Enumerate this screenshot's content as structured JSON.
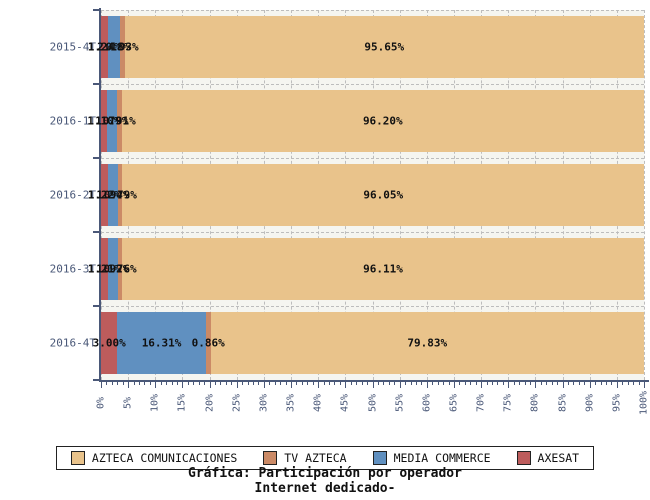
{
  "chart_data": {
    "type": "bar",
    "orientation": "horizontal",
    "stacked": true,
    "title": "Gráfica: Participación por operador",
    "subtitle": "Internet dedicado-",
    "categories": [
      "2015-4T",
      "2016-1T",
      "2016-2T",
      "2016-3T",
      "2016-4T"
    ],
    "series": [
      {
        "name": "AXESAT",
        "color": "#bd5c5c",
        "values": [
          1.24,
          1.1,
          1.22,
          1.21,
          3.0
        ],
        "labels": [
          "1.24%",
          "1.10%",
          "1.22%",
          "1.21%",
          "3.00%"
        ]
      },
      {
        "name": "MEDIA COMMERCE",
        "color": "#6090c0",
        "values": [
          2.18,
          1.79,
          1.94,
          1.92,
          16.31
        ],
        "labels": [
          "2.18%",
          "1.79%",
          "1.94%",
          "1.92%",
          "16.31%"
        ]
      },
      {
        "name": "TV AZTECA",
        "color": "#cb8a66",
        "values": [
          0.93,
          0.91,
          0.79,
          0.76,
          0.86
        ],
        "labels": [
          "0.93%",
          "0.91%",
          "0.79%",
          "0.76%",
          "0.86%"
        ]
      },
      {
        "name": "AZTECA COMUNICACIONES",
        "color": "#e9c38b",
        "values": [
          95.65,
          96.2,
          96.05,
          96.11,
          79.83
        ],
        "labels": [
          "95.65%",
          "96.20%",
          "96.05%",
          "96.11%",
          "79.83%"
        ]
      }
    ],
    "legend": [
      {
        "label": "AZTECA COMUNICACIONES",
        "color": "#e9c38b"
      },
      {
        "label": "TV AZTECA",
        "color": "#cb8a66"
      },
      {
        "label": "MEDIA COMMERCE",
        "color": "#6090c0"
      },
      {
        "label": "AXESAT",
        "color": "#bd5c5c"
      }
    ],
    "xlim": [
      0,
      100
    ],
    "x_ticks": [
      "0%",
      "5%",
      "10%",
      "15%",
      "20%",
      "25%",
      "30%",
      "35%",
      "40%",
      "45%",
      "50%",
      "55%",
      "60%",
      "65%",
      "70%",
      "75%",
      "80%",
      "85%",
      "90%",
      "95%",
      "100%"
    ],
    "grid": "dashed",
    "colors": {
      "axis": "#4a5878",
      "grid": "#bdbdbd",
      "plot_bg": "#f5f5f0",
      "label": "#111111"
    }
  }
}
